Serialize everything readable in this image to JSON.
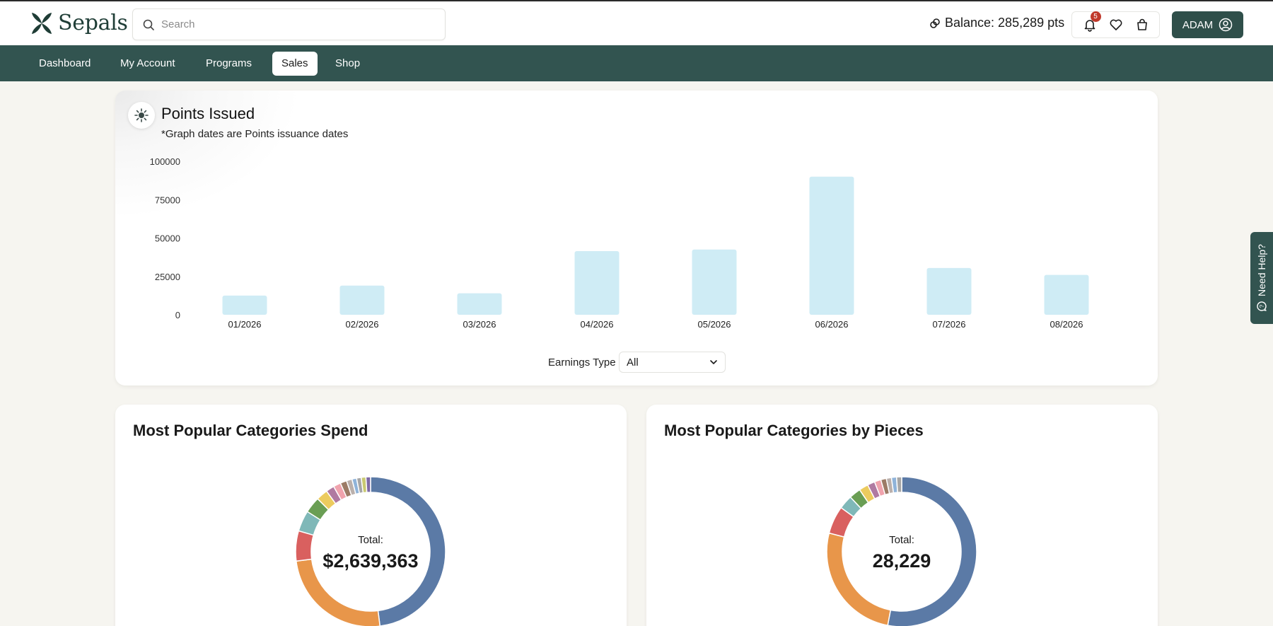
{
  "header": {
    "brand": "Sepals",
    "search_placeholder": "Search",
    "balance_text": "Balance: 285,289 pts",
    "notification_count": "5",
    "user_label": "ADAM"
  },
  "nav": {
    "items": [
      {
        "label": "Dashboard",
        "active": false
      },
      {
        "label": "My Account",
        "active": false
      },
      {
        "label": "Programs",
        "active": false
      },
      {
        "label": "Sales",
        "active": true
      },
      {
        "label": "Shop",
        "active": false
      }
    ]
  },
  "points_card": {
    "title": "Points Issued",
    "subtitle": "*Graph dates are Points issuance dates",
    "earnings_type_label": "Earnings Type",
    "earnings_type_value": "All"
  },
  "chart_data": [
    {
      "type": "bar",
      "title": "Points Issued",
      "categories": [
        "01/2026",
        "02/2026",
        "03/2026",
        "04/2026",
        "05/2026",
        "06/2026",
        "07/2026",
        "08/2026"
      ],
      "values": [
        12500,
        19000,
        14000,
        41500,
        42500,
        90000,
        30500,
        26000
      ],
      "y_ticks": [
        "100000",
        "75000",
        "50000",
        "25000",
        "0"
      ],
      "ylim": [
        0,
        100000
      ],
      "bar_color": "#cfecf5",
      "grid": false,
      "legend": "none"
    },
    {
      "type": "pie",
      "title": "Most Popular Categories Spend",
      "center_label": "Total:",
      "center_value": "$2,639,363",
      "slices": [
        {
          "value": 48.0,
          "color": "#5b7aa6"
        },
        {
          "value": 25.0,
          "color": "#e8964a"
        },
        {
          "value": 6.5,
          "color": "#d9605f"
        },
        {
          "value": 4.5,
          "color": "#7fb8b8"
        },
        {
          "value": 3.5,
          "color": "#6a9e54"
        },
        {
          "value": 2.5,
          "color": "#eccb5e"
        },
        {
          "value": 1.8,
          "color": "#b07aa1"
        },
        {
          "value": 1.6,
          "color": "#f0a3ad"
        },
        {
          "value": 1.4,
          "color": "#9c7b66"
        },
        {
          "value": 1.2,
          "color": "#bab0ac"
        },
        {
          "value": 1.0,
          "color": "#8fb3d9"
        },
        {
          "value": 1.0,
          "color": "#a6a6a6"
        },
        {
          "value": 1.0,
          "color": "#c9c971"
        },
        {
          "value": 1.0,
          "color": "#7e6aa6"
        }
      ]
    },
    {
      "type": "pie",
      "title": "Most Popular Categories by Pieces",
      "center_label": "Total:",
      "center_value": "28,229",
      "slices": [
        {
          "value": 53.0,
          "color": "#5b7aa6"
        },
        {
          "value": 26.0,
          "color": "#e8964a"
        },
        {
          "value": 6.0,
          "color": "#d9605f"
        },
        {
          "value": 3.0,
          "color": "#7fb8b8"
        },
        {
          "value": 2.5,
          "color": "#6a9e54"
        },
        {
          "value": 2.0,
          "color": "#eccb5e"
        },
        {
          "value": 1.6,
          "color": "#b07aa1"
        },
        {
          "value": 1.4,
          "color": "#f0a3ad"
        },
        {
          "value": 1.2,
          "color": "#9c7b66"
        },
        {
          "value": 1.1,
          "color": "#bab0ac"
        },
        {
          "value": 1.1,
          "color": "#8fb3d9"
        },
        {
          "value": 1.1,
          "color": "#a6a6a6"
        }
      ]
    }
  ],
  "help_tab": {
    "label": "Need Help?"
  },
  "colors": {
    "brand_green": "#325450",
    "button_green": "#2f4f4a",
    "page_bg": "#f6f5f0",
    "bar": "#cfecf5",
    "badge_red": "#c0392b"
  },
  "icons": [
    "search-icon",
    "link-icon",
    "bell-icon",
    "heart-icon",
    "bag-icon",
    "user-circle-icon",
    "chevron-down-icon",
    "sun-chart-icon",
    "chat-help-icon"
  ]
}
